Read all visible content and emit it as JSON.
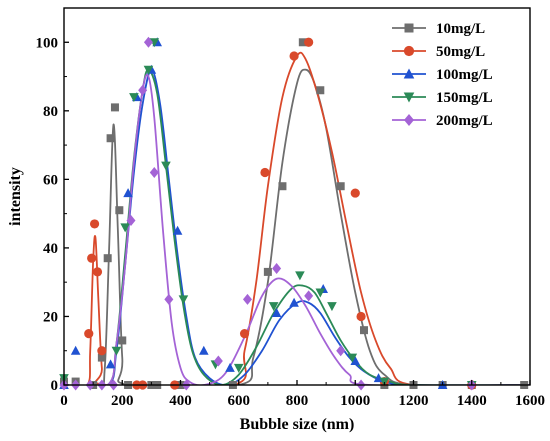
{
  "chart_data": {
    "type": "scatter",
    "xlabel": "Bubble size (nm)",
    "ylabel": "intensity",
    "xlim": [
      0,
      1600
    ],
    "ylim": [
      0,
      110
    ],
    "xticks": [
      0,
      200,
      400,
      600,
      800,
      1000,
      1200,
      1400,
      1600
    ],
    "yticks": [
      0,
      20,
      40,
      60,
      80,
      100
    ],
    "grid": false,
    "legend_position": "top-right",
    "series": [
      {
        "name": "10mg/L",
        "color": "#6e6e6e",
        "marker": "square",
        "points": [
          [
            0,
            1
          ],
          [
            40,
            1
          ],
          [
            100,
            0
          ],
          [
            130,
            8
          ],
          [
            150,
            37
          ],
          [
            160,
            72
          ],
          [
            175,
            81
          ],
          [
            190,
            51
          ],
          [
            200,
            13
          ],
          [
            220,
            0
          ],
          [
            300,
            0
          ],
          [
            320,
            0
          ],
          [
            400,
            0
          ],
          [
            580,
            0
          ],
          [
            700,
            33
          ],
          [
            750,
            58
          ],
          [
            820,
            100
          ],
          [
            880,
            86
          ],
          [
            950,
            58
          ],
          [
            1030,
            16
          ],
          [
            1100,
            0
          ],
          [
            1200,
            0
          ],
          [
            1300,
            0
          ],
          [
            1400,
            0
          ],
          [
            1580,
            0
          ]
        ],
        "curve": [
          [
            0,
            0
          ],
          [
            120,
            0
          ],
          [
            140,
            5
          ],
          [
            155,
            40
          ],
          [
            170,
            76
          ],
          [
            185,
            45
          ],
          [
            200,
            8
          ],
          [
            220,
            0
          ],
          [
            600,
            0
          ],
          [
            650,
            8
          ],
          [
            700,
            30
          ],
          [
            750,
            65
          ],
          [
            800,
            88
          ],
          [
            830,
            92
          ],
          [
            860,
            88
          ],
          [
            900,
            75
          ],
          [
            950,
            50
          ],
          [
            1000,
            27
          ],
          [
            1050,
            10
          ],
          [
            1100,
            3
          ],
          [
            1200,
            0
          ],
          [
            1600,
            0
          ]
        ]
      },
      {
        "name": "50mg/L",
        "color": "#d9492b",
        "marker": "circle",
        "points": [
          [
            85,
            15
          ],
          [
            95,
            37
          ],
          [
            105,
            47
          ],
          [
            115,
            33
          ],
          [
            130,
            10
          ],
          [
            250,
            0
          ],
          [
            270,
            0
          ],
          [
            380,
            0
          ],
          [
            620,
            15
          ],
          [
            690,
            62
          ],
          [
            790,
            96
          ],
          [
            840,
            100
          ],
          [
            1000,
            56
          ],
          [
            1020,
            20
          ],
          [
            1100,
            1
          ],
          [
            1400,
            0
          ]
        ],
        "curve": [
          [
            0,
            0
          ],
          [
            80,
            0
          ],
          [
            90,
            10
          ],
          [
            100,
            36
          ],
          [
            108,
            43
          ],
          [
            118,
            25
          ],
          [
            130,
            5
          ],
          [
            145,
            0
          ],
          [
            580,
            0
          ],
          [
            620,
            10
          ],
          [
            660,
            30
          ],
          [
            700,
            58
          ],
          [
            750,
            84
          ],
          [
            800,
            96
          ],
          [
            830,
            95
          ],
          [
            870,
            85
          ],
          [
            920,
            68
          ],
          [
            970,
            47
          ],
          [
            1020,
            27
          ],
          [
            1070,
            13
          ],
          [
            1120,
            5
          ],
          [
            1200,
            0
          ],
          [
            1600,
            0
          ]
        ]
      },
      {
        "name": "100mg/L",
        "color": "#2052d1",
        "marker": "triangle-up",
        "points": [
          [
            0,
            0
          ],
          [
            40,
            10
          ],
          [
            160,
            6
          ],
          [
            220,
            56
          ],
          [
            250,
            84
          ],
          [
            300,
            92
          ],
          [
            320,
            100
          ],
          [
            390,
            45
          ],
          [
            480,
            10
          ],
          [
            570,
            5
          ],
          [
            730,
            21
          ],
          [
            790,
            24
          ],
          [
            890,
            28
          ],
          [
            1000,
            7
          ],
          [
            1080,
            2
          ],
          [
            1300,
            0
          ]
        ],
        "curve": [
          [
            0,
            0
          ],
          [
            150,
            0
          ],
          [
            180,
            10
          ],
          [
            210,
            35
          ],
          [
            240,
            62
          ],
          [
            270,
            82
          ],
          [
            300,
            92
          ],
          [
            330,
            82
          ],
          [
            360,
            60
          ],
          [
            390,
            38
          ],
          [
            420,
            20
          ],
          [
            450,
            8
          ],
          [
            500,
            2
          ],
          [
            560,
            0
          ],
          [
            620,
            3
          ],
          [
            680,
            10
          ],
          [
            740,
            19
          ],
          [
            800,
            24
          ],
          [
            840,
            24
          ],
          [
            880,
            21
          ],
          [
            930,
            14
          ],
          [
            980,
            8
          ],
          [
            1030,
            4
          ],
          [
            1100,
            1
          ],
          [
            1200,
            0
          ],
          [
            1600,
            0
          ]
        ]
      },
      {
        "name": "150mg/L",
        "color": "#2b8a57",
        "marker": "triangle-down",
        "points": [
          [
            0,
            2
          ],
          [
            180,
            10
          ],
          [
            210,
            46
          ],
          [
            240,
            84
          ],
          [
            290,
            92
          ],
          [
            310,
            100
          ],
          [
            350,
            64
          ],
          [
            410,
            25
          ],
          [
            520,
            6
          ],
          [
            600,
            5
          ],
          [
            720,
            23
          ],
          [
            810,
            32
          ],
          [
            880,
            27
          ],
          [
            920,
            23
          ],
          [
            990,
            8
          ],
          [
            1100,
            1
          ],
          [
            1400,
            0
          ]
        ],
        "curve": [
          [
            0,
            0
          ],
          [
            150,
            0
          ],
          [
            180,
            12
          ],
          [
            210,
            38
          ],
          [
            240,
            66
          ],
          [
            270,
            86
          ],
          [
            290,
            92
          ],
          [
            320,
            85
          ],
          [
            350,
            64
          ],
          [
            380,
            42
          ],
          [
            410,
            23
          ],
          [
            440,
            10
          ],
          [
            480,
            3
          ],
          [
            540,
            0
          ],
          [
            600,
            3
          ],
          [
            660,
            11
          ],
          [
            720,
            21
          ],
          [
            780,
            28
          ],
          [
            820,
            29
          ],
          [
            860,
            27
          ],
          [
            900,
            21
          ],
          [
            950,
            13
          ],
          [
            1000,
            7
          ],
          [
            1050,
            3
          ],
          [
            1120,
            1
          ],
          [
            1200,
            0
          ],
          [
            1600,
            0
          ]
        ]
      },
      {
        "name": "200mg/L",
        "color": "#a463d6",
        "marker": "diamond",
        "points": [
          [
            0,
            0
          ],
          [
            40,
            0
          ],
          [
            90,
            0
          ],
          [
            130,
            0
          ],
          [
            170,
            0
          ],
          [
            230,
            48
          ],
          [
            270,
            86
          ],
          [
            290,
            100
          ],
          [
            310,
            62
          ],
          [
            360,
            25
          ],
          [
            420,
            0
          ],
          [
            530,
            7
          ],
          [
            630,
            25
          ],
          [
            730,
            34
          ],
          [
            840,
            26
          ],
          [
            950,
            10
          ],
          [
            1020,
            0
          ],
          [
            1400,
            0
          ]
        ],
        "curve": [
          [
            0,
            0
          ],
          [
            150,
            0
          ],
          [
            180,
            12
          ],
          [
            210,
            35
          ],
          [
            240,
            65
          ],
          [
            270,
            86
          ],
          [
            290,
            90
          ],
          [
            310,
            78
          ],
          [
            340,
            45
          ],
          [
            370,
            18
          ],
          [
            400,
            5
          ],
          [
            430,
            1
          ],
          [
            480,
            0
          ],
          [
            550,
            3
          ],
          [
            620,
            14
          ],
          [
            680,
            26
          ],
          [
            730,
            31
          ],
          [
            780,
            29
          ],
          [
            830,
            23
          ],
          [
            880,
            15
          ],
          [
            930,
            8
          ],
          [
            980,
            3
          ],
          [
            1050,
            0
          ],
          [
            1600,
            0
          ]
        ]
      }
    ]
  }
}
